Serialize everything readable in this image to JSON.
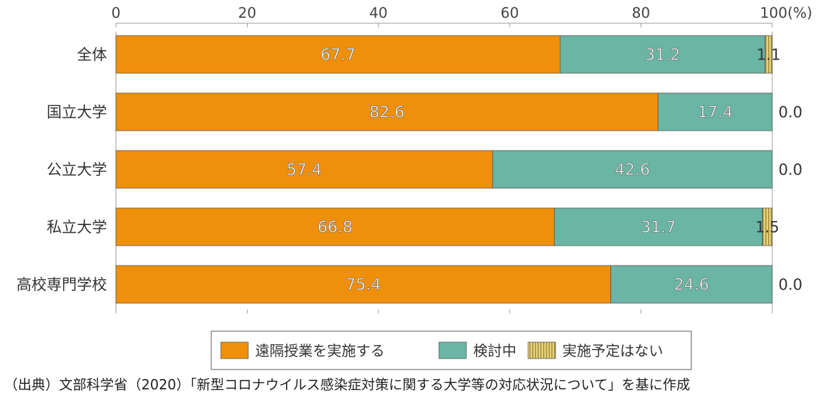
{
  "chart_data": {
    "type": "bar",
    "orientation": "horizontal",
    "stacked": true,
    "categories": [
      "全体",
      "国立大学",
      "公立大学",
      "私立大学",
      "高校専門学校"
    ],
    "series": [
      {
        "name": "遠隔授業を実施する",
        "values": [
          67.7,
          82.6,
          57.4,
          66.8,
          75.4
        ],
        "labels": [
          "67.7",
          "82.6",
          "57.4",
          "66.8",
          "75.4"
        ],
        "color": "#f0900a"
      },
      {
        "name": "検討中",
        "values": [
          31.2,
          17.4,
          42.6,
          31.7,
          24.6
        ],
        "labels": [
          "31.2",
          "17.4",
          "42.6",
          "31.7",
          "24.6"
        ],
        "color": "#6ab5a4"
      },
      {
        "name": "実施予定はない",
        "values": [
          1.1,
          0.0,
          0.0,
          1.5,
          0.0
        ],
        "labels": [
          "1.1",
          "0.0",
          "0.0",
          "1.5",
          "0.0"
        ],
        "color": "#e8d27a"
      }
    ],
    "xlim": [
      0,
      100
    ],
    "xticks": [
      0,
      20,
      40,
      60,
      80
    ],
    "xtick_labels": [
      "0",
      "20",
      "40",
      "60",
      "80"
    ],
    "xtick_last_label": "100(%)",
    "legend_position": "bottom-center",
    "grid": false
  },
  "caption": "（出典）文部科学省（2020）「新型コロナウイルス感染症対策に関する大学等の対応状況について」を基に作成",
  "colors": {
    "text": "#444444",
    "axis": "#999999",
    "border": "#555555"
  }
}
